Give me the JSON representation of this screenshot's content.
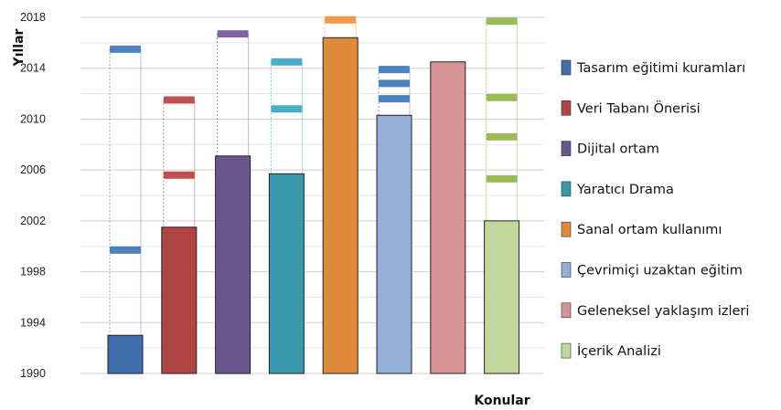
{
  "chart_data": {
    "type": "bar",
    "ylabel": "Yıllar",
    "xlabel": "Konular",
    "ylim": [
      1990,
      2018
    ],
    "yticks": [
      1990,
      1994,
      1998,
      2002,
      2006,
      2010,
      2014,
      2018
    ],
    "grid": true,
    "legend_position": "right",
    "series": [
      {
        "name": "Tasarım eğitimi kuramları",
        "color": "#3f6eab",
        "bar_value": 1993,
        "markers": [
          1999.7,
          2015.5
        ],
        "marker_color": "#4f81bd"
      },
      {
        "name": "Veri Tabanı Önerisi",
        "color": "#b04443",
        "bar_value": 2001.5,
        "markers": [
          2005.6,
          2011.5
        ],
        "marker_color": "#c0504d"
      },
      {
        "name": "Dijital ortam",
        "color": "#6b558f",
        "bar_value": 2007.1,
        "markers": [
          2016.7
        ],
        "marker_color": "#8064a2"
      },
      {
        "name": "Yaratıcı Drama",
        "color": "#3a98ad",
        "bar_value": 2005.7,
        "markers": [
          2010.8,
          2014.5
        ],
        "marker_color": "#4bacc6"
      },
      {
        "name": "Sanal ortam kullanımı",
        "color": "#e08a3c",
        "bar_value": 2016.4,
        "markers": [
          2017.8
        ],
        "marker_color": "#f79646"
      },
      {
        "name": "Çevrimiçi uzaktan eğitim",
        "color": "#95aed8",
        "bar_value": 2010.3,
        "markers": [
          2011.6,
          2012.8,
          2013.9
        ],
        "marker_color": "#4f81bd"
      },
      {
        "name": "Geleneksel yaklaşım izleri",
        "color": "#d69494",
        "bar_value": 2014.5,
        "markers": [],
        "marker_color": "#d69494"
      },
      {
        "name": "İçerik Analizi",
        "color": "#c1d89a",
        "bar_value": 2002.0,
        "markers": [
          2005.3,
          2008.6,
          2011.7,
          2017.7
        ],
        "marker_color": "#9bbb59"
      }
    ]
  }
}
